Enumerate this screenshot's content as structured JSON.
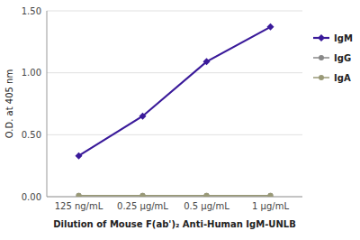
{
  "chart_data": {
    "type": "line",
    "categories": [
      "125 ng/mL",
      "0.25 μg/mL",
      "0.5 μg/mL",
      "1 μg/mL"
    ],
    "series": [
      {
        "name": "IgM",
        "color": "#3a1a9a",
        "marker": "diamond",
        "values": [
          0.33,
          0.65,
          1.09,
          1.37
        ]
      },
      {
        "name": "IgG",
        "color": "#888888",
        "marker": "circle",
        "values": [
          0.01,
          0.01,
          0.01,
          0.01
        ]
      },
      {
        "name": "IgA",
        "color": "#999977",
        "marker": "circle",
        "values": [
          0.01,
          0.01,
          0.01,
          0.01
        ]
      }
    ],
    "xlabel": "Dilution of Mouse F(ab')₂ Anti-Human IgM-UNLB",
    "ylabel": "O.D. at 405 nm",
    "ylim": [
      0.0,
      1.5
    ],
    "yticks": [
      {
        "value": 0.0,
        "label": "0.00"
      },
      {
        "value": 0.5,
        "label": "0.50"
      },
      {
        "value": 1.0,
        "label": "1.00"
      },
      {
        "value": 1.5,
        "label": "1.50"
      }
    ],
    "grid": true,
    "legend": "right"
  }
}
